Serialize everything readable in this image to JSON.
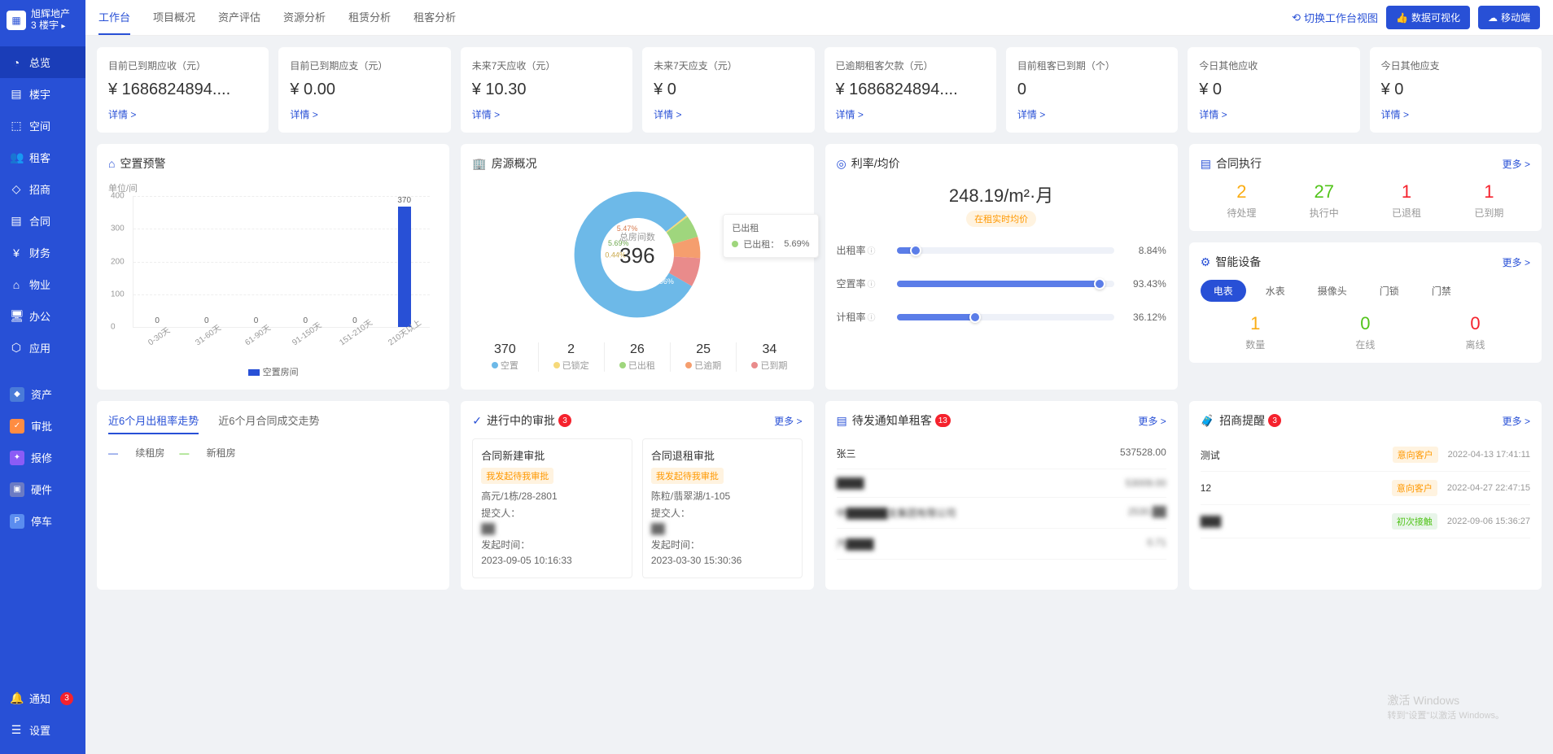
{
  "brand": {
    "name": "旭辉地产",
    "sub": "3 楼宇",
    "arrow": "▸"
  },
  "sidebar": {
    "items": [
      {
        "icon": "◔",
        "label": "总览",
        "active": true
      },
      {
        "icon": "▤",
        "label": "楼宇"
      },
      {
        "icon": "⬚",
        "label": "空间"
      },
      {
        "icon": "👥",
        "label": "租客"
      },
      {
        "icon": "◇",
        "label": "招商"
      },
      {
        "icon": "▤",
        "label": "合同"
      },
      {
        "icon": "¥",
        "label": "财务"
      },
      {
        "icon": "⌂",
        "label": "物业"
      },
      {
        "icon": "🖥",
        "label": "办公"
      },
      {
        "icon": "⬡",
        "label": "应用"
      }
    ],
    "extra": [
      {
        "icon": "◆",
        "label": "资产",
        "color": "#4a7bd8"
      },
      {
        "icon": "✓",
        "label": "审批",
        "color": "#ff8c42"
      },
      {
        "icon": "✦",
        "label": "报修",
        "color": "#8b5cf6"
      },
      {
        "icon": "▣",
        "label": "硬件",
        "color": "#6b7bc4"
      },
      {
        "icon": "P",
        "label": "停车",
        "color": "#5b8def"
      }
    ],
    "bottom": [
      {
        "icon": "🔔",
        "label": "通知",
        "badge": "3"
      },
      {
        "icon": "☰",
        "label": "设置"
      }
    ]
  },
  "topbar": {
    "tabs": [
      "工作台",
      "项目概况",
      "资产评估",
      "资源分析",
      "租赁分析",
      "租客分析"
    ],
    "activeTab": "工作台",
    "switchView": "切换工作台视图",
    "dataViz": "数据可视化",
    "mobile": "移动端"
  },
  "statCards": [
    {
      "title": "目前已到期应收（元）",
      "value": "¥ 1686824894....",
      "link": "详情 >"
    },
    {
      "title": "目前已到期应支（元）",
      "value": "¥ 0.00",
      "link": "详情 >"
    },
    {
      "title": "未来7天应收（元）",
      "value": "¥ 10.30",
      "link": "详情 >"
    },
    {
      "title": "未来7天应支（元）",
      "value": "¥ 0",
      "link": "详情 >"
    },
    {
      "title": "已逾期租客欠款（元）",
      "value": "¥ 1686824894....",
      "link": "详情 >"
    },
    {
      "title": "目前租客已到期（个）",
      "value": "0",
      "link": "详情 >"
    },
    {
      "title": "今日其他应收",
      "value": "¥ 0",
      "link": "详情 >"
    },
    {
      "title": "今日其他应支",
      "value": "¥ 0",
      "link": "详情 >"
    }
  ],
  "vacancy": {
    "title": "空置预警",
    "yLabel": "单位/间",
    "yMax": 400,
    "yStep": 100,
    "categories": [
      "0-30天",
      "31-60天",
      "61-90天",
      "91-150天",
      "151-210天",
      "210天以上"
    ],
    "values": [
      0,
      0,
      0,
      0,
      0,
      370
    ],
    "topLabel": "370",
    "legend": "空置房间",
    "barColor": "#2850d6"
  },
  "housing": {
    "title": "房源概况",
    "centerLabel": "总房间数",
    "centerValue": "396",
    "tooltip": {
      "title": "已出租",
      "label": "已出租：",
      "value": "5.69%",
      "dot": "#9fd67d"
    },
    "segments": [
      {
        "label": "空置",
        "value": 370,
        "pct": 80.96,
        "color": "#6db9e8"
      },
      {
        "label": "已锁定",
        "value": 2,
        "pct": 0.44,
        "color": "#f6d97a"
      },
      {
        "label": "已出租",
        "value": 26,
        "pct": 5.69,
        "color": "#9fd67d"
      },
      {
        "label": "已逾期",
        "value": 25,
        "pct": 5.47,
        "color": "#f59e6e"
      },
      {
        "label": "已到期",
        "value": 34,
        "pct": 7.44,
        "color": "#e98b8b"
      }
    ],
    "pctLabels": [
      "80.96%",
      "0.44%",
      "5.69%",
      "5.47%"
    ]
  },
  "rates": {
    "title": "利率/均价",
    "mainValue": "248.19/m²·月",
    "badge": "在租实时均价",
    "rows": [
      {
        "label": "出租率",
        "pct": 8.84,
        "text": "8.84%"
      },
      {
        "label": "空置率",
        "pct": 93.43,
        "text": "93.43%"
      },
      {
        "label": "计租率",
        "pct": 36.12,
        "text": "36.12%"
      }
    ]
  },
  "contract": {
    "title": "合同执行",
    "more": "更多 >",
    "items": [
      {
        "num": "2",
        "label": "待处理",
        "color": "#faad14"
      },
      {
        "num": "27",
        "label": "执行中",
        "color": "#52c41a"
      },
      {
        "num": "1",
        "label": "已退租",
        "color": "#f5222d"
      },
      {
        "num": "1",
        "label": "已到期",
        "color": "#f5222d"
      }
    ]
  },
  "devices": {
    "title": "智能设备",
    "more": "更多 >",
    "tabs": [
      "电表",
      "水表",
      "摄像头",
      "门锁",
      "门禁"
    ],
    "activeTab": "电表",
    "items": [
      {
        "num": "1",
        "label": "数量",
        "color": "#faad14"
      },
      {
        "num": "0",
        "label": "在线",
        "color": "#52c41a"
      },
      {
        "num": "0",
        "label": "离线",
        "color": "#f5222d"
      }
    ]
  },
  "trend": {
    "tabs": [
      "近6个月出租率走势",
      "近6个月合同成交走势"
    ],
    "activeTab": "近6个月出租率走势",
    "legend": [
      {
        "label": "续租房",
        "color": "#2850d6"
      },
      {
        "label": "新租房",
        "color": "#52c41a"
      }
    ]
  },
  "approvals": {
    "title": "进行中的审批",
    "badge": "3",
    "more": "更多 >",
    "cards": [
      {
        "title": "合同新建审批",
        "tag": "我发起待我审批",
        "line1": "高元/1栋/28-2801",
        "submitter": "提交人：",
        "submitterName": "██",
        "time": "发起时间：",
        "timeVal": "2023-09-05 10:16:33"
      },
      {
        "title": "合同退租审批",
        "tag": "我发起待我审批",
        "line1": "陈粒/翡翠湖/1-105",
        "submitter": "提交人：",
        "submitterName": "██",
        "time": "发起时间：",
        "timeVal": "2023-03-30 15:30:36"
      }
    ]
  },
  "notices": {
    "title": "待发通知单租客",
    "badge": "13",
    "more": "更多 >",
    "rows": [
      {
        "name": "张三",
        "value": "537528.00"
      },
      {
        "name": "████",
        "value": "53009.00",
        "blur": true
      },
      {
        "name": "中██████支集团有限公司",
        "value": "2530.██",
        "blur": true
      },
      {
        "name": "汽████",
        "value": "0.71",
        "blur": true
      }
    ]
  },
  "reminders": {
    "title": "招商提醒",
    "badge": "3",
    "more": "更多 >",
    "rows": [
      {
        "name": "测试",
        "tag": "意向客户",
        "tagClass": "tag-orange",
        "time": "2022-04-13 17:41:11"
      },
      {
        "name": "12",
        "tag": "意向客户",
        "tagClass": "tag-orange",
        "time": "2022-04-27 22:47:15"
      },
      {
        "name": "███",
        "tag": "初次接触",
        "tagClass": "tag-green",
        "time": "2022-09-06 15:36:27",
        "blur": true
      }
    ]
  },
  "watermark": {
    "line1": "激活 Windows",
    "line2": "转到\"设置\"以激活 Windows。"
  }
}
